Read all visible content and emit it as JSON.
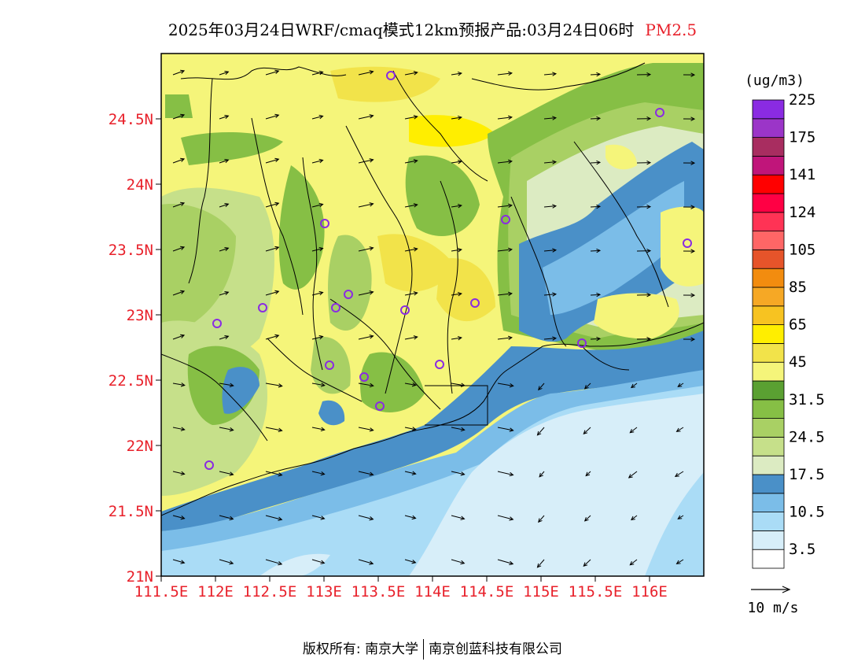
{
  "title": {
    "main": "2025年03月24日WRF/cmaq模式12km预报产品:03月24日06时",
    "product": "PM2.5"
  },
  "axes": {
    "lat_labels": [
      "21N",
      "21.5N",
      "22N",
      "22.5N",
      "23N",
      "23.5N",
      "24N",
      "24.5N"
    ],
    "lon_labels": [
      "111.5E",
      "112E",
      "112.5E",
      "113E",
      "113.5E",
      "114E",
      "114.5E",
      "115E",
      "115.5E",
      "116E"
    ],
    "label_color": "#e8202a"
  },
  "legend": {
    "unit": "(ug/m3)",
    "bands": [
      {
        "color": "#ffffff"
      },
      {
        "color": "#d7eef9"
      },
      {
        "color": "#aadcf6"
      },
      {
        "color": "#7bbde8"
      },
      {
        "color": "#4a90c8"
      },
      {
        "color": "#dcebc2"
      },
      {
        "color": "#c6e08a"
      },
      {
        "color": "#a9d064"
      },
      {
        "color": "#86bf45"
      },
      {
        "color": "#5aa032"
      },
      {
        "color": "#f5f57a"
      },
      {
        "color": "#f2e34a"
      },
      {
        "color": "#ffee00"
      },
      {
        "color": "#f7c321"
      },
      {
        "color": "#f6a825"
      },
      {
        "color": "#f28c0f"
      },
      {
        "color": "#e6542a"
      },
      {
        "color": "#ff6666"
      },
      {
        "color": "#ff3355"
      },
      {
        "color": "#ff0044"
      },
      {
        "color": "#ff0000"
      },
      {
        "color": "#c0157a"
      },
      {
        "color": "#a82d60"
      },
      {
        "color": "#9b35c8"
      },
      {
        "color": "#8a2be2"
      }
    ],
    "labels": [
      "3.5",
      "10.5",
      "17.5",
      "24.5",
      "31.5",
      "45",
      "65",
      "85",
      "105",
      "124",
      "141",
      "175",
      "225"
    ]
  },
  "wind_reference": {
    "label": "10 m/s"
  },
  "stations": {
    "marker_color": "#8a2be2"
  },
  "footer": {
    "copyright_label": "版权所有:",
    "org1": "南京大学",
    "org2": "南京创蓝科技有限公司"
  }
}
